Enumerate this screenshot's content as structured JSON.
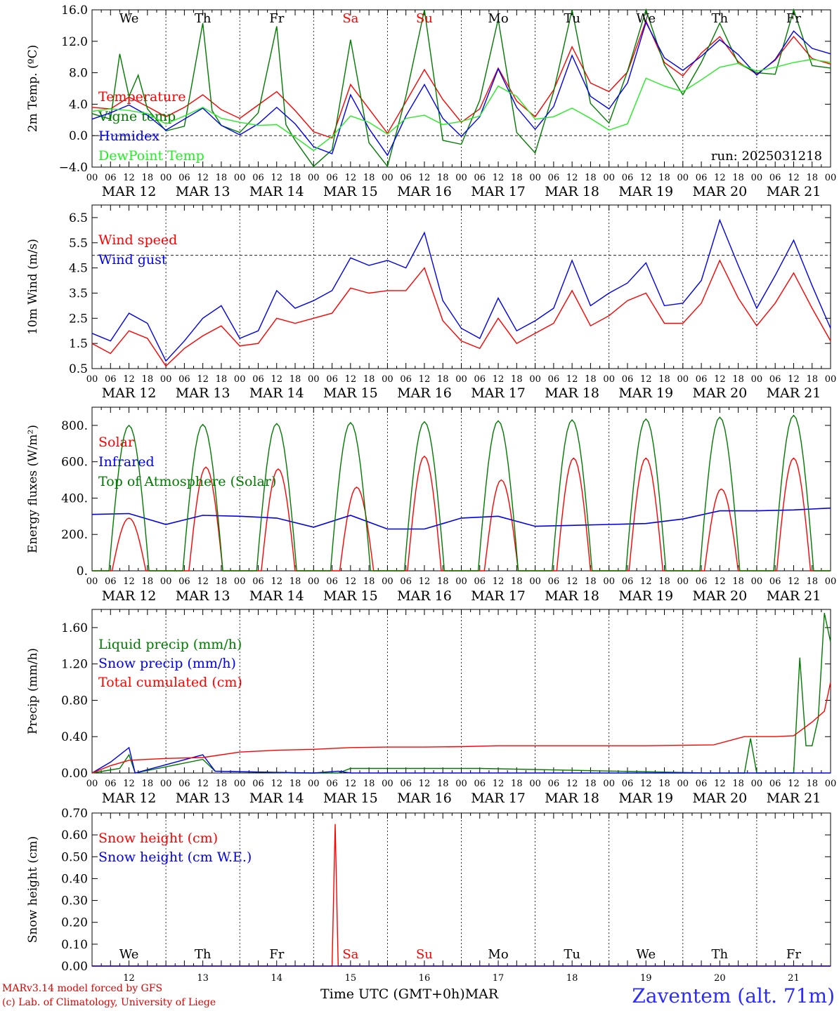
{
  "x_axis": {
    "hour_ticks": [
      "00",
      "06",
      "12",
      "18"
    ],
    "final_tick": "00",
    "dates": [
      "MAR 12",
      "MAR 13",
      "MAR 14",
      "MAR 15",
      "MAR 16",
      "MAR 17",
      "MAR 18",
      "MAR 19",
      "MAR 20",
      "MAR 21"
    ],
    "weekdays": [
      "We",
      "Th",
      "Fr",
      "Sa",
      "Su",
      "Mo",
      "Tu",
      "We",
      "Th",
      "Fr"
    ],
    "weekend_days": [
      "Sa",
      "Su"
    ],
    "day_numbers": [
      "12",
      "13",
      "14",
      "15",
      "16",
      "17",
      "18",
      "19",
      "20",
      "21"
    ],
    "label": "Time UTC (GMT+0h)",
    "month": "MAR"
  },
  "footer": {
    "model": "MARv3.14 model forced by GFS",
    "credit": "(c) Lab. of Climatology, University of Liege",
    "station": "Zaventem (alt. 71m)"
  },
  "colors": {
    "red": "#ff0000",
    "blue": "#0000ee",
    "green": "#007a00",
    "light_green": "#22ee22"
  },
  "chart_data": [
    {
      "type": "line",
      "ylabel": "2m Temp. (ºC)",
      "ylim": [
        -4.0,
        16.0
      ],
      "yticks": [
        "−4.0",
        "0.0",
        "4.0",
        "8.0",
        "12.0",
        "16.0"
      ],
      "ytick_values": [
        -4,
        0,
        4,
        8,
        12,
        16
      ],
      "reference_line": 0,
      "annotation": "run: 2025031218",
      "x_unit": "hours since MAR 12 00 UTC",
      "series": [
        {
          "name": "Temperature",
          "color": "#ff0000",
          "x": [
            0,
            6,
            12,
            18,
            24,
            30,
            36,
            42,
            48,
            54,
            60,
            66,
            72,
            78,
            84,
            90,
            96,
            102,
            108,
            114,
            120,
            126,
            132,
            138,
            144,
            150,
            156,
            162,
            168,
            174,
            180,
            186,
            192,
            198,
            204,
            210,
            216,
            222,
            228,
            234,
            240
          ],
          "values": [
            3.6,
            3.4,
            4.9,
            3.7,
            2.4,
            3.6,
            5.2,
            3.3,
            2.2,
            3.9,
            5.6,
            3.2,
            0.5,
            -0.3,
            6.5,
            3.4,
            0.3,
            4.3,
            8.4,
            4.6,
            1.7,
            3.4,
            8.6,
            4.4,
            2.4,
            5.8,
            11.3,
            6.7,
            5.6,
            8.1,
            14.6,
            9.3,
            7.6,
            10.5,
            12.6,
            9.4,
            7.8,
            9.6,
            12.6,
            9.8,
            9.1
          ]
        },
        {
          "name": "Vigne temp",
          "color": "#007a00",
          "x": [
            0,
            6,
            9,
            12,
            15,
            18,
            24,
            30,
            36,
            39,
            42,
            48,
            54,
            60,
            63,
            66,
            72,
            78,
            84,
            90,
            96,
            102,
            108,
            114,
            120,
            126,
            132,
            138,
            144,
            150,
            156,
            162,
            168,
            174,
            180,
            186,
            192,
            198,
            204,
            210,
            216,
            222,
            228,
            234,
            240
          ],
          "values": [
            2.8,
            2.1,
            10.4,
            5.0,
            7.7,
            3.4,
            0.6,
            1.2,
            14.3,
            3.2,
            1.3,
            0.4,
            2.9,
            13.9,
            1.4,
            -0.6,
            -3.9,
            -1.8,
            12.2,
            -0.9,
            -3.9,
            5.0,
            16.0,
            -0.6,
            -1.1,
            4.5,
            14.8,
            0.4,
            -2.2,
            5.6,
            16.0,
            4.1,
            1.6,
            8.2,
            16.0,
            9.0,
            5.2,
            9.3,
            14.3,
            9.2,
            8.0,
            7.8,
            16.0,
            8.9,
            8.6
          ]
        },
        {
          "name": "Humidex",
          "color": "#0000ee",
          "x": [
            0,
            6,
            12,
            18,
            24,
            30,
            36,
            42,
            48,
            54,
            60,
            66,
            72,
            78,
            84,
            90,
            96,
            102,
            108,
            114,
            120,
            126,
            132,
            138,
            144,
            150,
            156,
            162,
            168,
            174,
            180,
            186,
            192,
            198,
            204,
            210,
            216,
            222,
            228,
            234,
            240
          ],
          "values": [
            2.1,
            2.9,
            3.9,
            2.6,
            0.7,
            2.1,
            3.5,
            1.3,
            0.1,
            1.5,
            3.6,
            1.5,
            -1.4,
            -2.3,
            5.2,
            0.9,
            -2.5,
            2.5,
            6.5,
            2.2,
            -0.1,
            2.4,
            8.5,
            3.6,
            0.8,
            3.7,
            10.2,
            5.0,
            3.4,
            6.7,
            14.4,
            9.9,
            8.3,
            10.1,
            12.2,
            10.3,
            7.7,
            9.7,
            13.3,
            11.1,
            10.4
          ]
        },
        {
          "name": "DewPoint Temp",
          "color": "#22ee22",
          "x": [
            0,
            6,
            12,
            18,
            24,
            30,
            36,
            42,
            48,
            54,
            60,
            66,
            72,
            78,
            84,
            90,
            96,
            102,
            108,
            114,
            120,
            126,
            132,
            138,
            144,
            150,
            156,
            162,
            168,
            174,
            180,
            186,
            192,
            198,
            204,
            210,
            216,
            222,
            228,
            234,
            240
          ],
          "values": [
            3.1,
            3.4,
            3.2,
            2.8,
            1.5,
            2.5,
            3.6,
            2.2,
            1.7,
            1.3,
            1.4,
            -0.2,
            -1.9,
            -0.1,
            2.5,
            1.7,
            0.2,
            2.2,
            2.6,
            1.4,
            1.8,
            2.5,
            6.3,
            5.0,
            2.1,
            2.4,
            3.5,
            2.2,
            0.7,
            1.5,
            7.3,
            6.3,
            5.6,
            7.1,
            8.7,
            9.2,
            8.2,
            8.7,
            9.3,
            9.7,
            9.3
          ]
        }
      ]
    },
    {
      "type": "line",
      "ylabel": "10m Wind (m/s)",
      "ylim": [
        0.5,
        7.0
      ],
      "yticks": [
        "0.5",
        "1.5",
        "2.5",
        "3.5",
        "4.5",
        "5.5",
        "6.5"
      ],
      "ytick_values": [
        0.5,
        1.5,
        2.5,
        3.5,
        4.5,
        5.5,
        6.5
      ],
      "reference_line": 5.0,
      "x_unit": "hours since MAR 12 00 UTC",
      "series": [
        {
          "name": "Wind speed",
          "color": "#ff0000",
          "x": [
            0,
            6,
            12,
            18,
            24,
            30,
            36,
            42,
            48,
            54,
            60,
            66,
            72,
            78,
            84,
            90,
            96,
            102,
            108,
            114,
            120,
            126,
            132,
            138,
            144,
            150,
            156,
            162,
            168,
            174,
            180,
            186,
            192,
            198,
            204,
            210,
            216,
            222,
            228,
            234,
            240
          ],
          "values": [
            1.5,
            1.1,
            2.0,
            1.7,
            0.6,
            1.3,
            1.8,
            2.2,
            1.4,
            1.5,
            2.5,
            2.3,
            2.5,
            2.7,
            3.7,
            3.5,
            3.6,
            3.6,
            4.5,
            2.4,
            1.6,
            1.3,
            2.5,
            1.5,
            1.9,
            2.3,
            3.6,
            2.2,
            2.6,
            3.2,
            3.5,
            2.3,
            2.3,
            3.1,
            4.8,
            3.3,
            2.2,
            3.1,
            4.3,
            2.9,
            1.6
          ]
        },
        {
          "name": "Wind gust",
          "color": "#0000ee",
          "x": [
            0,
            6,
            12,
            18,
            24,
            30,
            36,
            42,
            48,
            54,
            60,
            66,
            72,
            78,
            84,
            90,
            96,
            102,
            108,
            114,
            120,
            126,
            132,
            138,
            144,
            150,
            156,
            162,
            168,
            174,
            180,
            186,
            192,
            198,
            204,
            210,
            216,
            222,
            228,
            234,
            240
          ],
          "values": [
            1.9,
            1.6,
            2.7,
            2.3,
            0.8,
            1.6,
            2.5,
            3.0,
            1.7,
            2.0,
            3.6,
            2.9,
            3.2,
            3.6,
            4.9,
            4.6,
            4.8,
            4.5,
            5.9,
            3.2,
            2.1,
            1.7,
            3.3,
            2.0,
            2.4,
            2.9,
            4.8,
            3.0,
            3.5,
            3.9,
            4.7,
            3.0,
            3.1,
            4.0,
            6.4,
            4.6,
            2.9,
            4.2,
            5.6,
            3.8,
            2.1
          ]
        }
      ]
    },
    {
      "type": "line",
      "ylabel": "Energy fluxes (W/m²)",
      "ylim": [
        0,
        900
      ],
      "yticks": [
        "0.",
        "200.",
        "400.",
        "600.",
        "800."
      ],
      "ytick_values": [
        0,
        200,
        400,
        600,
        800
      ],
      "x_unit": "hours since MAR 12 00 UTC",
      "series": [
        {
          "name": "Solar",
          "color": "#ff0000",
          "peaks": [
            290,
            570,
            560,
            460,
            630,
            500,
            620,
            620,
            450,
            620
          ],
          "peak_hours": [
            12,
            13,
            12.5,
            14,
            12,
            13,
            12.5,
            12,
            12.5,
            12
          ]
        },
        {
          "name": "Infrared",
          "color": "#0000ee",
          "x": [
            0,
            12,
            24,
            36,
            48,
            60,
            72,
            84,
            96,
            108,
            120,
            132,
            144,
            156,
            168,
            180,
            192,
            204,
            216,
            228,
            240
          ],
          "values": [
            310,
            315,
            255,
            305,
            300,
            290,
            240,
            305,
            230,
            230,
            290,
            300,
            245,
            250,
            255,
            260,
            285,
            330,
            330,
            335,
            345
          ]
        },
        {
          "name": "Top of Atmosphere (Solar)",
          "color": "#007a00",
          "peaks": [
            800,
            805,
            810,
            815,
            820,
            825,
            830,
            835,
            845,
            855
          ],
          "peak_hours": [
            12,
            12,
            12,
            12,
            12,
            12,
            12,
            12,
            12,
            12
          ]
        }
      ]
    },
    {
      "type": "line",
      "ylabel": "Precip (mm/h)",
      "ylim": [
        0.0,
        1.8
      ],
      "yticks": [
        "0.00",
        "0.40",
        "0.80",
        "1.20",
        "1.60"
      ],
      "ytick_values": [
        0.0,
        0.4,
        0.8,
        1.2,
        1.6
      ],
      "x_unit": "hours since MAR 12 00 UTC",
      "series": [
        {
          "name": "Liquid precip (mm/h)",
          "color": "#007a00",
          "x": [
            0,
            9,
            12,
            14,
            36,
            40,
            66,
            80,
            84,
            126,
            200,
            212,
            214,
            216,
            228,
            230,
            232,
            234,
            236,
            238,
            240
          ],
          "values": [
            0.0,
            0.05,
            0.2,
            0.0,
            0.15,
            0.02,
            0.0,
            0.0,
            0.05,
            0.05,
            0.0,
            0.0,
            0.38,
            0.0,
            0.0,
            1.27,
            0.3,
            0.3,
            0.6,
            1.76,
            1.44
          ]
        },
        {
          "name": "Snow precip (mm/h)",
          "color": "#0000ee",
          "x": [
            0,
            6,
            12,
            14,
            36,
            40,
            72,
            80,
            84,
            240
          ],
          "values": [
            0.0,
            0.12,
            0.28,
            0.0,
            0.2,
            0.02,
            0.0,
            0.02,
            0.0,
            0.0
          ]
        },
        {
          "name": "Total cumulated (cm)",
          "color": "#ff0000",
          "x": [
            0,
            6,
            12,
            18,
            24,
            36,
            48,
            60,
            72,
            84,
            96,
            108,
            120,
            132,
            144,
            180,
            202,
            212,
            222,
            228,
            234,
            238,
            240
          ],
          "values": [
            0.0,
            0.08,
            0.14,
            0.15,
            0.16,
            0.17,
            0.23,
            0.25,
            0.26,
            0.28,
            0.285,
            0.285,
            0.29,
            0.3,
            0.3,
            0.3,
            0.31,
            0.4,
            0.4,
            0.41,
            0.56,
            0.68,
            1.0
          ]
        }
      ]
    },
    {
      "type": "line",
      "ylabel": "Snow height (cm)",
      "ylim": [
        0.0,
        0.7
      ],
      "yticks": [
        "0.00",
        "0.10",
        "0.20",
        "0.30",
        "0.40",
        "0.50",
        "0.60",
        "0.70"
      ],
      "ytick_values": [
        0.0,
        0.1,
        0.2,
        0.3,
        0.4,
        0.5,
        0.6,
        0.7
      ],
      "x_unit": "hours since MAR 12 00 UTC",
      "series": [
        {
          "name": "Snow height (cm)",
          "color": "#ff0000",
          "x": [
            0,
            78,
            79,
            80,
            240
          ],
          "values": [
            0.0,
            0.0,
            0.65,
            0.0,
            0.0
          ]
        },
        {
          "name": "Snow height (cm W.E.)",
          "color": "#0000ee",
          "x": [
            0,
            240
          ],
          "values": [
            0.0,
            0.0
          ]
        }
      ]
    }
  ]
}
